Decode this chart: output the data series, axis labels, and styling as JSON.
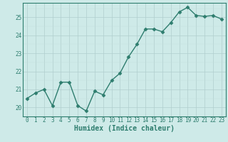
{
  "x": [
    0,
    1,
    2,
    3,
    4,
    5,
    6,
    7,
    8,
    9,
    10,
    11,
    12,
    13,
    14,
    15,
    16,
    17,
    18,
    19,
    20,
    21,
    22,
    23
  ],
  "y": [
    20.5,
    20.8,
    21.0,
    20.1,
    21.4,
    21.4,
    20.1,
    19.8,
    20.9,
    20.7,
    21.5,
    21.9,
    22.8,
    23.5,
    24.35,
    24.35,
    24.2,
    24.7,
    25.3,
    25.55,
    25.1,
    25.05,
    25.1,
    24.9
  ],
  "line_color": "#2e7d6e",
  "marker": "D",
  "marker_size": 2.5,
  "bg_color": "#ceeae8",
  "grid_major_color": "#b0cece",
  "grid_minor_color": "#c4dede",
  "xlabel": "Humidex (Indice chaleur)",
  "ylim": [
    19.5,
    25.8
  ],
  "xlim": [
    -0.5,
    23.5
  ],
  "yticks": [
    20,
    21,
    22,
    23,
    24,
    25
  ],
  "xticks": [
    0,
    1,
    2,
    3,
    4,
    5,
    6,
    7,
    8,
    9,
    10,
    11,
    12,
    13,
    14,
    15,
    16,
    17,
    18,
    19,
    20,
    21,
    22,
    23
  ],
  "tick_fontsize": 5.5,
  "xlabel_fontsize": 7.0,
  "label_color": "#2e7d6e",
  "spine_color": "#2e7d6e",
  "linewidth": 1.0
}
